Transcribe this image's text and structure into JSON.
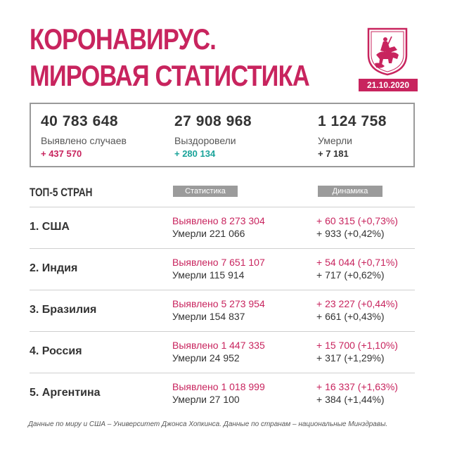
{
  "title": {
    "line1": "КОРОНАВИРУС.",
    "line2": "МИРОВАЯ СТАТИСТИКА"
  },
  "date": "21.10.2020",
  "colors": {
    "accent": "#c8245e",
    "teal": "#1aa39a",
    "gray": "#9b9b9b"
  },
  "summary": {
    "cases": {
      "value": "40 783 648",
      "label": "Выявлено случаев",
      "delta": "+ 437 570"
    },
    "recovered": {
      "value": "27 908 968",
      "label": "Выздоровели",
      "delta": "+ 280 134"
    },
    "deaths": {
      "value": "1 124 758",
      "label": "Умерли",
      "delta": "+ 7 181"
    }
  },
  "top5": {
    "heading": "ТОП-5 СТРАН",
    "col_stats": "Статистика",
    "col_dynamics": "Динамика",
    "rows": [
      {
        "name": "1. США",
        "detected": "Выявлено 8 273 304",
        "died": "Умерли 221 066",
        "dyn_cases": "+ 60 315 (+0,73%)",
        "dyn_deaths": "+ 933 (+0,42%)"
      },
      {
        "name": "2. Индия",
        "detected": "Выявлено 7 651 107",
        "died": "Умерли 115 914",
        "dyn_cases": "+ 54 044 (+0,71%)",
        "dyn_deaths": "+ 717 (+0,62%)"
      },
      {
        "name": "3. Бразилия",
        "detected": "Выявлено 5 273 954",
        "died": "Умерли 154 837",
        "dyn_cases": "+ 23 227 (+0,44%)",
        "dyn_deaths": "+ 661 (+0,43%)"
      },
      {
        "name": "4. Россия",
        "detected": "Выявлено 1 447 335",
        "died": "Умерли 24 952",
        "dyn_cases": "+ 15 700 (+1,10%)",
        "dyn_deaths": "+ 317 (+1,29%)"
      },
      {
        "name": "5. Аргентина",
        "detected": "Выявлено 1 018 999",
        "died": "Умерли 27 100",
        "dyn_cases": "+ 16 337 (+1,63%)",
        "dyn_deaths": "+ 384 (+1,44%)"
      }
    ]
  },
  "footnote": "Данные по миру и США – Университет Джонса Хопкинса. Данные по странам – национальные Минздравы."
}
